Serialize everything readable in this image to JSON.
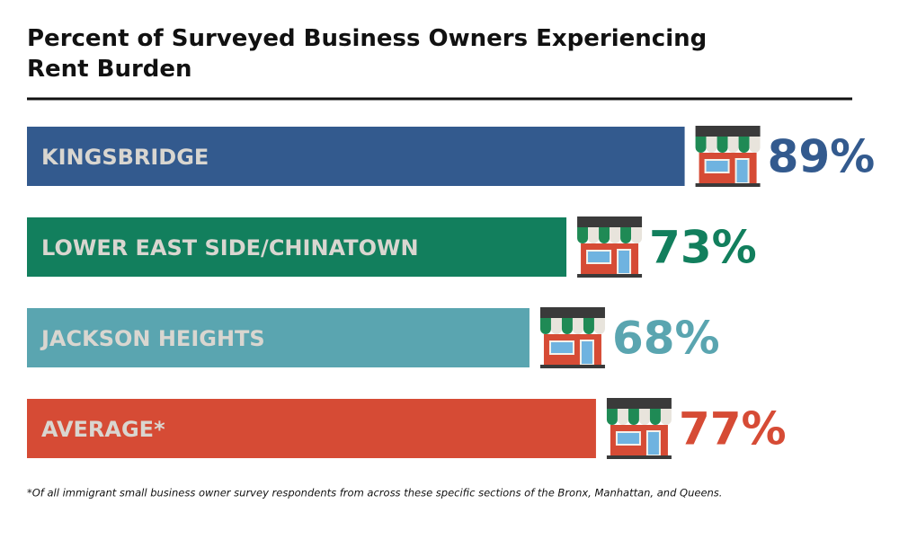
{
  "chart_data": {
    "type": "bar",
    "orientation": "horizontal",
    "title": "Percent of Surveyed Business Owners Experiencing Rent Burden",
    "categories": [
      "KINGSBRIDGE",
      "LOWER EAST SIDE/CHINATOWN",
      "JACKSON HEIGHTS",
      "AVERAGE*"
    ],
    "values": [
      89,
      73,
      68,
      77
    ],
    "value_labels": [
      "89%",
      "73%",
      "68%",
      "77%"
    ],
    "colors": [
      "#335a8e",
      "#127f5d",
      "#5aa5b0",
      "#d64b35"
    ],
    "footnote": "*Of all immigrant small business owner survey respondents from across these specific sections of the Bronx, Manhattan, and Queens."
  }
}
